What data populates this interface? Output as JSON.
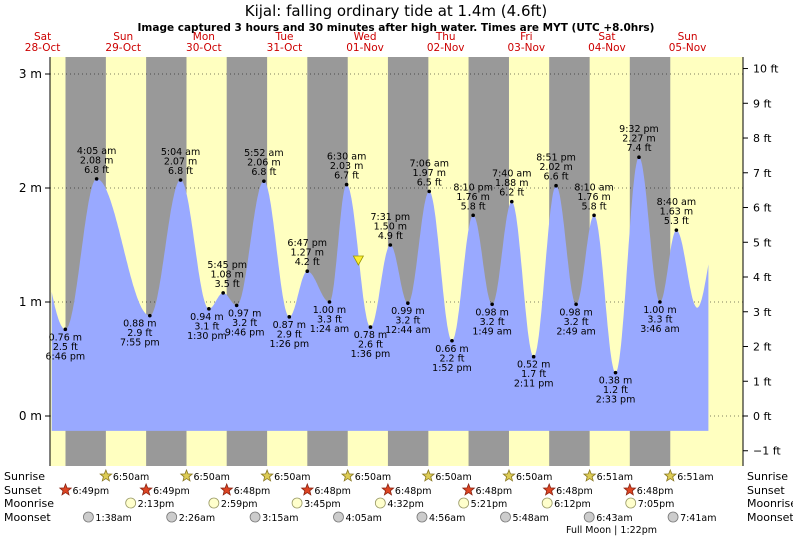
{
  "header": {
    "title": "Kijal: falling  ordinary tide at 1.4m (4.6ft)",
    "subtitle": "Image captured 3 hours and 30 minutes after high water. Times are MYT (UTC +8.0hrs)"
  },
  "colors": {
    "day": "#ffffc0",
    "night": "#999999",
    "tide": "#99a9ff",
    "day_label": "#cc0000",
    "now_marker": "#ffee33"
  },
  "chart_data": {
    "type": "area",
    "title": "Kijal: falling  ordinary tide at 1.4m (4.6ft)",
    "x_unit": "hours from start of 28-Oct (MYT)",
    "x_range": [
      14.2,
      220.5
    ],
    "y_range_m": [
      -0.13,
      3.15
    ],
    "days": [
      {
        "name": "Sat",
        "date": "28-Oct"
      },
      {
        "name": "Sun",
        "date": "29-Oct"
      },
      {
        "name": "Mon",
        "date": "30-Oct"
      },
      {
        "name": "Tue",
        "date": "31-Oct"
      },
      {
        "name": "Wed",
        "date": "01-Nov"
      },
      {
        "name": "Thu",
        "date": "02-Nov"
      },
      {
        "name": "Fri",
        "date": "03-Nov"
      },
      {
        "name": "Sat",
        "date": "04-Nov"
      },
      {
        "name": "Sun",
        "date": "05-Nov"
      }
    ],
    "y_ticks_m": [
      "0 m",
      "1 m",
      "2 m",
      "3 m"
    ],
    "y_ticks_ft": [
      "−1 ft",
      "0 ft",
      "1 ft",
      "2 ft",
      "3 ft",
      "4 ft",
      "5 ft",
      "6 ft",
      "7 ft",
      "8 ft",
      "9 ft",
      "10 ft"
    ],
    "start_height_m": 1.15,
    "end_height_m": 1.27,
    "tides": [
      {
        "kind": "low",
        "day": 0,
        "time": "6:46 pm",
        "m": "0.76 m",
        "ft": "2.5 ft",
        "h": 0.76
      },
      {
        "kind": "high",
        "day": 1,
        "time": "4:05 am",
        "m": "2.08 m",
        "ft": "6.8 ft",
        "h": 2.08
      },
      {
        "kind": "low",
        "day": 1,
        "time": "7:55 pm",
        "m": "0.88 m",
        "ft": "2.9 ft",
        "h": 0.88
      },
      {
        "kind": "high",
        "day": 2,
        "time": "5:04 am",
        "m": "2.07 m",
        "ft": "6.8 ft",
        "h": 2.07
      },
      {
        "kind": "low",
        "day": 2,
        "time": "1:30 pm",
        "m": "0.94 m",
        "ft": "3.1 ft",
        "h": 0.94
      },
      {
        "kind": "high",
        "day": 2,
        "time": "5:45 pm",
        "m": "1.08 m",
        "ft": "3.5 ft",
        "h": 1.08
      },
      {
        "kind": "low",
        "day": 2,
        "time": "9:46 pm",
        "m": "0.97 m",
        "ft": "3.2 ft",
        "h": 0.97
      },
      {
        "kind": "high",
        "day": 3,
        "time": "5:52 am",
        "m": "2.06 m",
        "ft": "6.8 ft",
        "h": 2.06
      },
      {
        "kind": "low",
        "day": 3,
        "time": "1:26 pm",
        "m": "0.87 m",
        "ft": "2.9 ft",
        "h": 0.87
      },
      {
        "kind": "high",
        "day": 3,
        "time": "6:47 pm",
        "m": "1.27 m",
        "ft": "4.2 ft",
        "h": 1.27
      },
      {
        "kind": "low",
        "day": 4,
        "time": "1:24 am",
        "m": "1.00 m",
        "ft": "3.3 ft",
        "h": 1.0
      },
      {
        "kind": "high",
        "day": 4,
        "time": "6:30 am",
        "m": "2.03 m",
        "ft": "6.7 ft",
        "h": 2.03
      },
      {
        "kind": "low",
        "day": 4,
        "time": "1:36 pm",
        "m": "0.78 m",
        "ft": "2.6 ft",
        "h": 0.78
      },
      {
        "kind": "high",
        "day": 4,
        "time": "7:31 pm",
        "m": "1.50 m",
        "ft": "4.9 ft",
        "h": 1.5
      },
      {
        "kind": "low",
        "day": 5,
        "time": "12:44 am",
        "m": "0.99 m",
        "ft": "3.2 ft",
        "h": 0.99
      },
      {
        "kind": "high",
        "day": 5,
        "time": "7:06 am",
        "m": "1.97 m",
        "ft": "6.5 ft",
        "h": 1.97
      },
      {
        "kind": "low",
        "day": 5,
        "time": "1:52 pm",
        "m": "0.66 m",
        "ft": "2.2 ft",
        "h": 0.66
      },
      {
        "kind": "high",
        "day": 5,
        "time": "8:10 pm",
        "m": "1.76 m",
        "ft": "5.8 ft",
        "h": 1.76
      },
      {
        "kind": "low",
        "day": 6,
        "time": "1:49 am",
        "m": "0.98 m",
        "ft": "3.2 ft",
        "h": 0.98
      },
      {
        "kind": "high",
        "day": 6,
        "time": "7:40 am",
        "m": "1.88 m",
        "ft": "6.2 ft",
        "h": 1.88
      },
      {
        "kind": "low",
        "day": 6,
        "time": "2:11 pm",
        "m": "0.52 m",
        "ft": "1.7 ft",
        "h": 0.52
      },
      {
        "kind": "high",
        "day": 6,
        "time": "8:51 pm",
        "m": "2.02 m",
        "ft": "6.6 ft",
        "h": 2.02
      },
      {
        "kind": "low",
        "day": 7,
        "time": "2:49 am",
        "m": "0.98 m",
        "ft": "3.2 ft",
        "h": 0.98
      },
      {
        "kind": "high",
        "day": 7,
        "time": "8:10 am",
        "m": "1.76 m",
        "ft": "5.8 ft",
        "h": 1.76
      },
      {
        "kind": "low",
        "day": 7,
        "time": "2:33 pm",
        "m": "0.38 m",
        "ft": "1.2 ft",
        "h": 0.38
      },
      {
        "kind": "high",
        "day": 7,
        "time": "9:32 pm",
        "m": "2.27 m",
        "ft": "7.4 ft",
        "h": 2.27
      },
      {
        "kind": "low",
        "day": 8,
        "time": "3:46 am",
        "m": "1.00 m",
        "ft": "3.3 ft",
        "h": 1.0
      },
      {
        "kind": "high",
        "day": 8,
        "time": "8:40 am",
        "m": "1.63 m",
        "ft": "5.3 ft",
        "h": 1.63
      }
    ],
    "now": {
      "day": 4,
      "time": "10:00 am",
      "h": 1.4
    }
  },
  "astro": {
    "row_labels": [
      "Sunrise",
      "Sunset",
      "Moonrise",
      "Moonset"
    ],
    "sunrise": [
      {
        "day": 1,
        "time": "6:50am"
      },
      {
        "day": 2,
        "time": "6:50am"
      },
      {
        "day": 3,
        "time": "6:50am"
      },
      {
        "day": 4,
        "time": "6:50am"
      },
      {
        "day": 5,
        "time": "6:50am"
      },
      {
        "day": 6,
        "time": "6:50am"
      },
      {
        "day": 7,
        "time": "6:51am"
      },
      {
        "day": 8,
        "time": "6:51am"
      }
    ],
    "sunset": [
      {
        "day": 0,
        "time": "6:49pm"
      },
      {
        "day": 1,
        "time": "6:49pm"
      },
      {
        "day": 2,
        "time": "6:48pm"
      },
      {
        "day": 3,
        "time": "6:48pm"
      },
      {
        "day": 4,
        "time": "6:48pm"
      },
      {
        "day": 5,
        "time": "6:48pm"
      },
      {
        "day": 6,
        "time": "6:48pm"
      },
      {
        "day": 7,
        "time": "6:48pm"
      }
    ],
    "moonrise": [
      {
        "day": 1,
        "time": "2:13pm"
      },
      {
        "day": 2,
        "time": "2:59pm"
      },
      {
        "day": 3,
        "time": "3:45pm"
      },
      {
        "day": 4,
        "time": "4:32pm"
      },
      {
        "day": 5,
        "time": "5:21pm"
      },
      {
        "day": 6,
        "time": "6:12pm"
      },
      {
        "day": 7,
        "time": "7:05pm"
      }
    ],
    "moonset": [
      {
        "day": 1,
        "time": "1:38am"
      },
      {
        "day": 2,
        "time": "2:26am"
      },
      {
        "day": 3,
        "time": "3:15am"
      },
      {
        "day": 4,
        "time": "4:05am"
      },
      {
        "day": 5,
        "time": "4:56am"
      },
      {
        "day": 6,
        "time": "5:48am"
      },
      {
        "day": 7,
        "time": "6:43am"
      },
      {
        "day": 8,
        "time": "7:41am"
      }
    ],
    "moon_phase": "Full Moon | 1:22pm",
    "moon_phase_day": 7,
    "moon_phase_time": "1:22 pm"
  }
}
